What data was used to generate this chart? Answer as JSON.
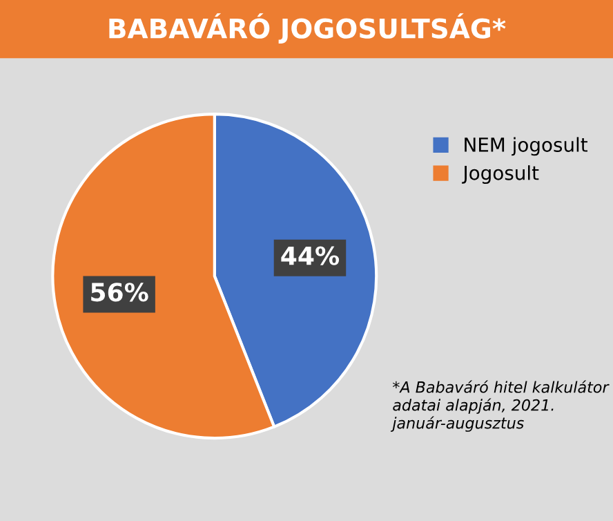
{
  "chart_data": {
    "type": "pie",
    "title": "BABAVÁRÓ JOGOSULTSÁG*",
    "categories": [
      "NEM jogosult",
      "Jogosult"
    ],
    "values": [
      44,
      56
    ],
    "colors": [
      "#4472c4",
      "#ed7d31"
    ],
    "value_labels": [
      "44%",
      "56%"
    ],
    "legend": "right",
    "annotations": [
      "*A Babaváró hitel kalkulátor adatai alapján, 2021. január-augusztus"
    ]
  }
}
